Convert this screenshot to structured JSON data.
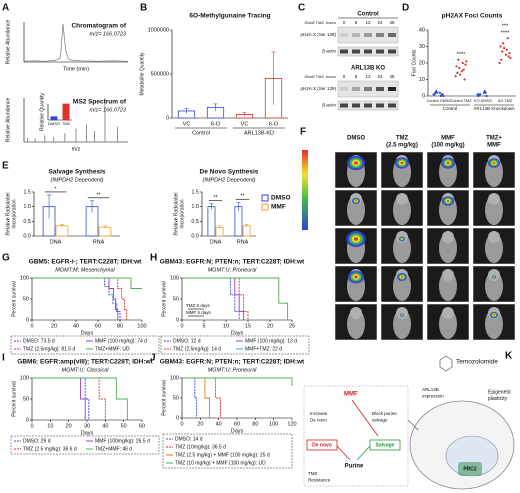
{
  "panel_labels": [
    "A",
    "B",
    "C",
    "D",
    "E",
    "F",
    "G",
    "H",
    "I",
    "J",
    "K"
  ],
  "chart_data": [
    {
      "type": "line",
      "title": "Chromatogram of",
      "subtitle": "m/z= 166.0723",
      "x_label": "Time (min)",
      "y_label": "Relative Abundance",
      "xlim": [
        0,
        20
      ],
      "ylim": [
        0,
        100
      ],
      "color": "#777777",
      "x": [
        0,
        2,
        4,
        6,
        7,
        7.5,
        8,
        8.5,
        9,
        11,
        14,
        17,
        20
      ],
      "values": [
        2,
        3,
        2,
        4,
        10,
        95,
        30,
        8,
        5,
        3,
        2,
        3,
        2
      ]
    },
    {
      "type": "stem",
      "title": "MS2 Spectrum of",
      "subtitle": "m/z= 166.0723",
      "x_label": "m/z",
      "y_label": "Relative Abundance",
      "xlim": [
        40,
        180
      ],
      "ylim": [
        0,
        100
      ],
      "color": "#777777",
      "x": [
        45,
        55,
        68,
        80,
        95,
        110,
        124,
        135,
        149,
        166
      ],
      "values": [
        10,
        8,
        15,
        12,
        20,
        30,
        40,
        25,
        100,
        35
      ]
    },
    {
      "type": "bar",
      "y_label": "Relative Quantity",
      "categories": [
        "DMSO",
        "TMZ"
      ],
      "values": [
        20,
        100
      ],
      "colors": [
        "#2f4bd1",
        "#e0302a"
      ],
      "ylim": [
        0,
        100
      ]
    },
    {
      "type": "bar",
      "title": "6O-Methylgunaine Tracing",
      "y_label": "Metabolite Quantity",
      "categories": [
        "VC",
        "6-O",
        "VC",
        "6-O"
      ],
      "groups": [
        "Control",
        "ARL13B-KD"
      ],
      "values": [
        80000,
        120000,
        40000,
        450000
      ],
      "errors": [
        30000,
        40000,
        20000,
        300000
      ],
      "colors": [
        "#2f4bd1",
        "#2f4bd1",
        "#e0302a",
        "#e0302a"
      ],
      "ylim": [
        0,
        1000000
      ],
      "yticks": [
        0,
        500000,
        1000000
      ]
    },
    {
      "type": "strip",
      "title": "pH2AX Foci Counts",
      "y_label": "Foci Counts",
      "categories": [
        "Control DMSO",
        "Control TMZ",
        "KO DMSO",
        "KO TMZ"
      ],
      "groups": [
        "Control",
        "ARL13B Knockdown"
      ],
      "colors": [
        "#2f4bd1",
        "#e0302a",
        "#2f4bd1",
        "#e0302a"
      ],
      "points": [
        [
          1,
          2,
          1,
          0,
          2,
          1,
          3,
          1,
          2,
          0
        ],
        [
          12,
          15,
          18,
          20,
          14,
          16,
          22,
          10,
          17,
          19,
          13,
          21
        ],
        [
          1,
          2,
          0,
          3,
          1,
          2,
          1,
          0
        ],
        [
          20,
          25,
          30,
          28,
          22,
          35,
          27,
          24,
          32,
          26,
          29,
          23
        ]
      ],
      "annotations": [
        {
          "text": "****",
          "category": "Control TMZ"
        },
        {
          "text": "****",
          "category": "KO TMZ"
        },
        {
          "text": "***",
          "category": "KO TMZ"
        }
      ],
      "ylim": [
        0,
        40
      ],
      "yticks": [
        0,
        10,
        20,
        30,
        40
      ]
    },
    {
      "type": "bar",
      "title": "Salvage Synthesis",
      "subtitle": "(IMPDH2 Dependent)",
      "y_label": [
        "Relative Radiolabel",
        "Incorporation"
      ],
      "categories": [
        "DNA",
        "RNA"
      ],
      "series": [
        {
          "name": "DMSO",
          "color": "#2f4bd1",
          "values": [
            1.0,
            1.0
          ],
          "errors": [
            0.4,
            0.2
          ]
        },
        {
          "name": "MMF",
          "color": "#f0a030",
          "values": [
            0.35,
            0.3
          ],
          "errors": [
            0.05,
            0.05
          ]
        }
      ],
      "annotations": [
        "*",
        "**"
      ],
      "ylim": [
        0,
        1.5
      ],
      "yticks": [
        {
          "value": 0,
          "label": "0.0"
        },
        0.5,
        {
          "value": 1,
          "label": "1.0"
        },
        1.5
      ]
    },
    {
      "type": "bar",
      "title": "De Novo Synthesis",
      "subtitle": "(IMPDH2 Dependent)",
      "y_label": [
        "Relative Radiolabel",
        "Incorporation"
      ],
      "categories": [
        "DNA",
        "RNA"
      ],
      "series": [
        {
          "name": "DMSO",
          "color": "#2f4bd1",
          "values": [
            1.0,
            1.0
          ],
          "errors": [
            0.1,
            0.15
          ]
        },
        {
          "name": "MMF",
          "color": "#f0a030",
          "values": [
            0.3,
            0.35
          ],
          "errors": [
            0.05,
            0.05
          ]
        }
      ],
      "annotations": [
        "**",
        "**"
      ],
      "legend": "right",
      "ylim": [
        0,
        1.5
      ],
      "yticks": [
        {
          "value": 0,
          "label": "0.0"
        },
        0.5,
        {
          "value": 1,
          "label": "1.0"
        },
        1.5
      ]
    },
    {
      "type": "survival",
      "title": "GBM5: EGFR-/-; TERT:C228T; IDH:wt",
      "subtitle": "MGMT:M; Mesenchymal",
      "x_label": "Days",
      "y_label": "Percent survival",
      "legend": "bottom",
      "xlim": [
        0,
        100
      ],
      "xticks": [
        0,
        20,
        40,
        60,
        80,
        100
      ],
      "ylim": [
        0,
        100
      ],
      "yticks": [
        0,
        50,
        100
      ],
      "series": [
        {
          "name": "DMSO: 73.5 d",
          "color": "#2f4bd1",
          "dash": true,
          "x": [
            0,
            62,
            66,
            70,
            73.5,
            77,
            80
          ],
          "values": [
            100,
            100,
            80,
            60,
            40,
            20,
            0
          ]
        },
        {
          "name": "TMZ (2.5mg/kg): 81.5 d",
          "color": "#e0302a",
          "dash": true,
          "x": [
            0,
            70,
            78,
            81.5,
            84,
            86
          ],
          "values": [
            100,
            100,
            75,
            50,
            25,
            0
          ]
        },
        {
          "name": "MMF (100 mg/kg): 74 d",
          "color": "#9b3bc8",
          "dash": false,
          "x": [
            0,
            64,
            70,
            74,
            76,
            78
          ],
          "values": [
            100,
            100,
            75,
            50,
            25,
            0
          ]
        },
        {
          "name": "TMZ+MMF: UD",
          "color": "#4caf50",
          "dash": false,
          "x": [
            0,
            78,
            90,
            100
          ],
          "values": [
            100,
            100,
            75,
            75
          ]
        }
      ]
    },
    {
      "type": "survival",
      "title": "GBM43: EGFR:N; PTEN:n; TERT:C228T; IDH:wt",
      "subtitle": "MGMT:U; Proneural",
      "x_label": "Days",
      "y_label": "Percent survival",
      "legend": "bottom",
      "annotations": [
        "TMZ 5 days",
        "MMF 5 days"
      ],
      "xlim": [
        0,
        25
      ],
      "xticks": [
        0,
        5,
        10,
        15,
        20,
        25
      ],
      "ylim": [
        0,
        100
      ],
      "yticks": [
        0,
        50,
        100
      ],
      "series": [
        {
          "name": "DMSO: 12 d",
          "color": "#2f4bd1",
          "dash": true,
          "x": [
            0,
            10,
            11,
            12,
            13
          ],
          "values": [
            100,
            100,
            60,
            20,
            0
          ]
        },
        {
          "name": "TMZ (2.5mg/kg): 14 d",
          "color": "#e0302a",
          "dash": true,
          "x": [
            0,
            12,
            13,
            14,
            15
          ],
          "values": [
            100,
            100,
            60,
            20,
            0
          ]
        },
        {
          "name": "MMF (100 mg/kg): 13 d",
          "color": "#9b3bc8",
          "dash": false,
          "x": [
            0,
            11,
            12,
            13,
            14
          ],
          "values": [
            100,
            100,
            60,
            20,
            0
          ]
        },
        {
          "name": "MMF+TMZ: 22 d",
          "color": "#4caf50",
          "dash": false,
          "x": [
            0,
            20,
            22,
            24
          ],
          "values": [
            100,
            100,
            40,
            0
          ]
        }
      ]
    },
    {
      "type": "survival",
      "title": "GBM6: EGFR:amp(vIII); TERT:C228T; IDH:wt",
      "subtitle": "MGMT:U; Classical",
      "x_label": "Days",
      "y_label": "Percent survival",
      "legend": "bottom",
      "xlim": [
        0,
        60
      ],
      "xticks": [
        0,
        10,
        20,
        30,
        40,
        50,
        60
      ],
      "ylim": [
        0,
        100
      ],
      "yticks": [
        0,
        50,
        100
      ],
      "series": [
        {
          "name": "DMSO: 29 d",
          "color": "#2f4bd1",
          "dash": true,
          "x": [
            0,
            27,
            29,
            31
          ],
          "values": [
            100,
            100,
            50,
            0
          ]
        },
        {
          "name": "TMZ (2.5 mg/kg): 36.6 d",
          "color": "#e0302a",
          "dash": true,
          "x": [
            0,
            33,
            36.6,
            40
          ],
          "values": [
            100,
            100,
            50,
            0
          ]
        },
        {
          "name": "MMF (100mg/kg): 26.5 d",
          "color": "#9b3bc8",
          "dash": false,
          "x": [
            0,
            24,
            26.5,
            29
          ],
          "values": [
            100,
            100,
            50,
            0
          ]
        },
        {
          "name": "TMZ+MMF: 46 d",
          "color": "#4caf50",
          "dash": false,
          "x": [
            0,
            42,
            46,
            52
          ],
          "values": [
            100,
            100,
            50,
            0
          ]
        }
      ]
    },
    {
      "type": "survival",
      "title": "GBM43: EGFR:N; PTEN:n; TERT:C228T; IDH:wt",
      "subtitle": "MGMT:U; Proneural",
      "x_label": "Days",
      "y_label": "Percent survival",
      "legend": "bottom",
      "xlim": [
        0,
        120
      ],
      "xticks": [
        0,
        20,
        40,
        60,
        80,
        100,
        120
      ],
      "ylim": [
        0,
        100
      ],
      "yticks": [
        0,
        50,
        100
      ],
      "series": [
        {
          "name": "DMSO: 14 d",
          "color": "#2f4bd1",
          "dash": true,
          "x": [
            0,
            12,
            14,
            16
          ],
          "values": [
            100,
            100,
            50,
            0
          ]
        },
        {
          "name": "TMZ (10mg/kg): 36.5 d",
          "color": "#e0302a",
          "dash": true,
          "x": [
            0,
            30,
            36.5,
            42
          ],
          "values": [
            100,
            100,
            50,
            0
          ]
        },
        {
          "name": "TMZ (2.5 mg/kg) + MMF (100 mg/kg): 25 d",
          "color": "#e07a2a",
          "dash": false,
          "x": [
            0,
            20,
            25,
            30
          ],
          "values": [
            100,
            100,
            50,
            0
          ]
        },
        {
          "name": "TMZ (10 mg/kg) + MMF (100 mg/kg): UD",
          "color": "#4caf50",
          "dash": false,
          "x": [
            0,
            95,
            120
          ],
          "values": [
            100,
            100,
            80
          ]
        }
      ]
    }
  ],
  "blot": {
    "blocks": [
      {
        "title": "Control",
        "time_label": "50uM TMZ, hours",
        "times": [
          "0",
          "6",
          "12",
          "24",
          "48"
        ],
        "rows": [
          "pH2A.X (Ser 139)",
          "β-actin"
        ]
      },
      {
        "title": "ARL13B KO",
        "time_label": "50uM TMZ, hours",
        "times": [
          "0",
          "6",
          "12",
          "24",
          "48"
        ],
        "rows": [
          "pH2A.X (Ser 139)",
          "β-actin"
        ]
      }
    ]
  },
  "imaging": {
    "columns": [
      [
        "DMSO"
      ],
      [
        "TMZ",
        "(2.5 mg/kg)"
      ],
      [
        "MMF",
        "(100 mg/kg)"
      ],
      [
        "TMZ+",
        "MMF"
      ]
    ]
  },
  "diagram": {
    "drug": "Temozolomide",
    "arl13b": [
      "ARL13B",
      "expression"
    ],
    "epigenetic": [
      "Epigenetic",
      "plasticity"
    ],
    "mmf": "MMF",
    "increase": [
      "Increase",
      "De novo"
    ],
    "block": [
      "Block purine",
      "salvage"
    ],
    "de_novo": "De novo",
    "salvage": "Salvage",
    "purine": "Purine",
    "resistance": [
      "TMZ",
      "Resistance"
    ],
    "prc2": "PRC2"
  }
}
